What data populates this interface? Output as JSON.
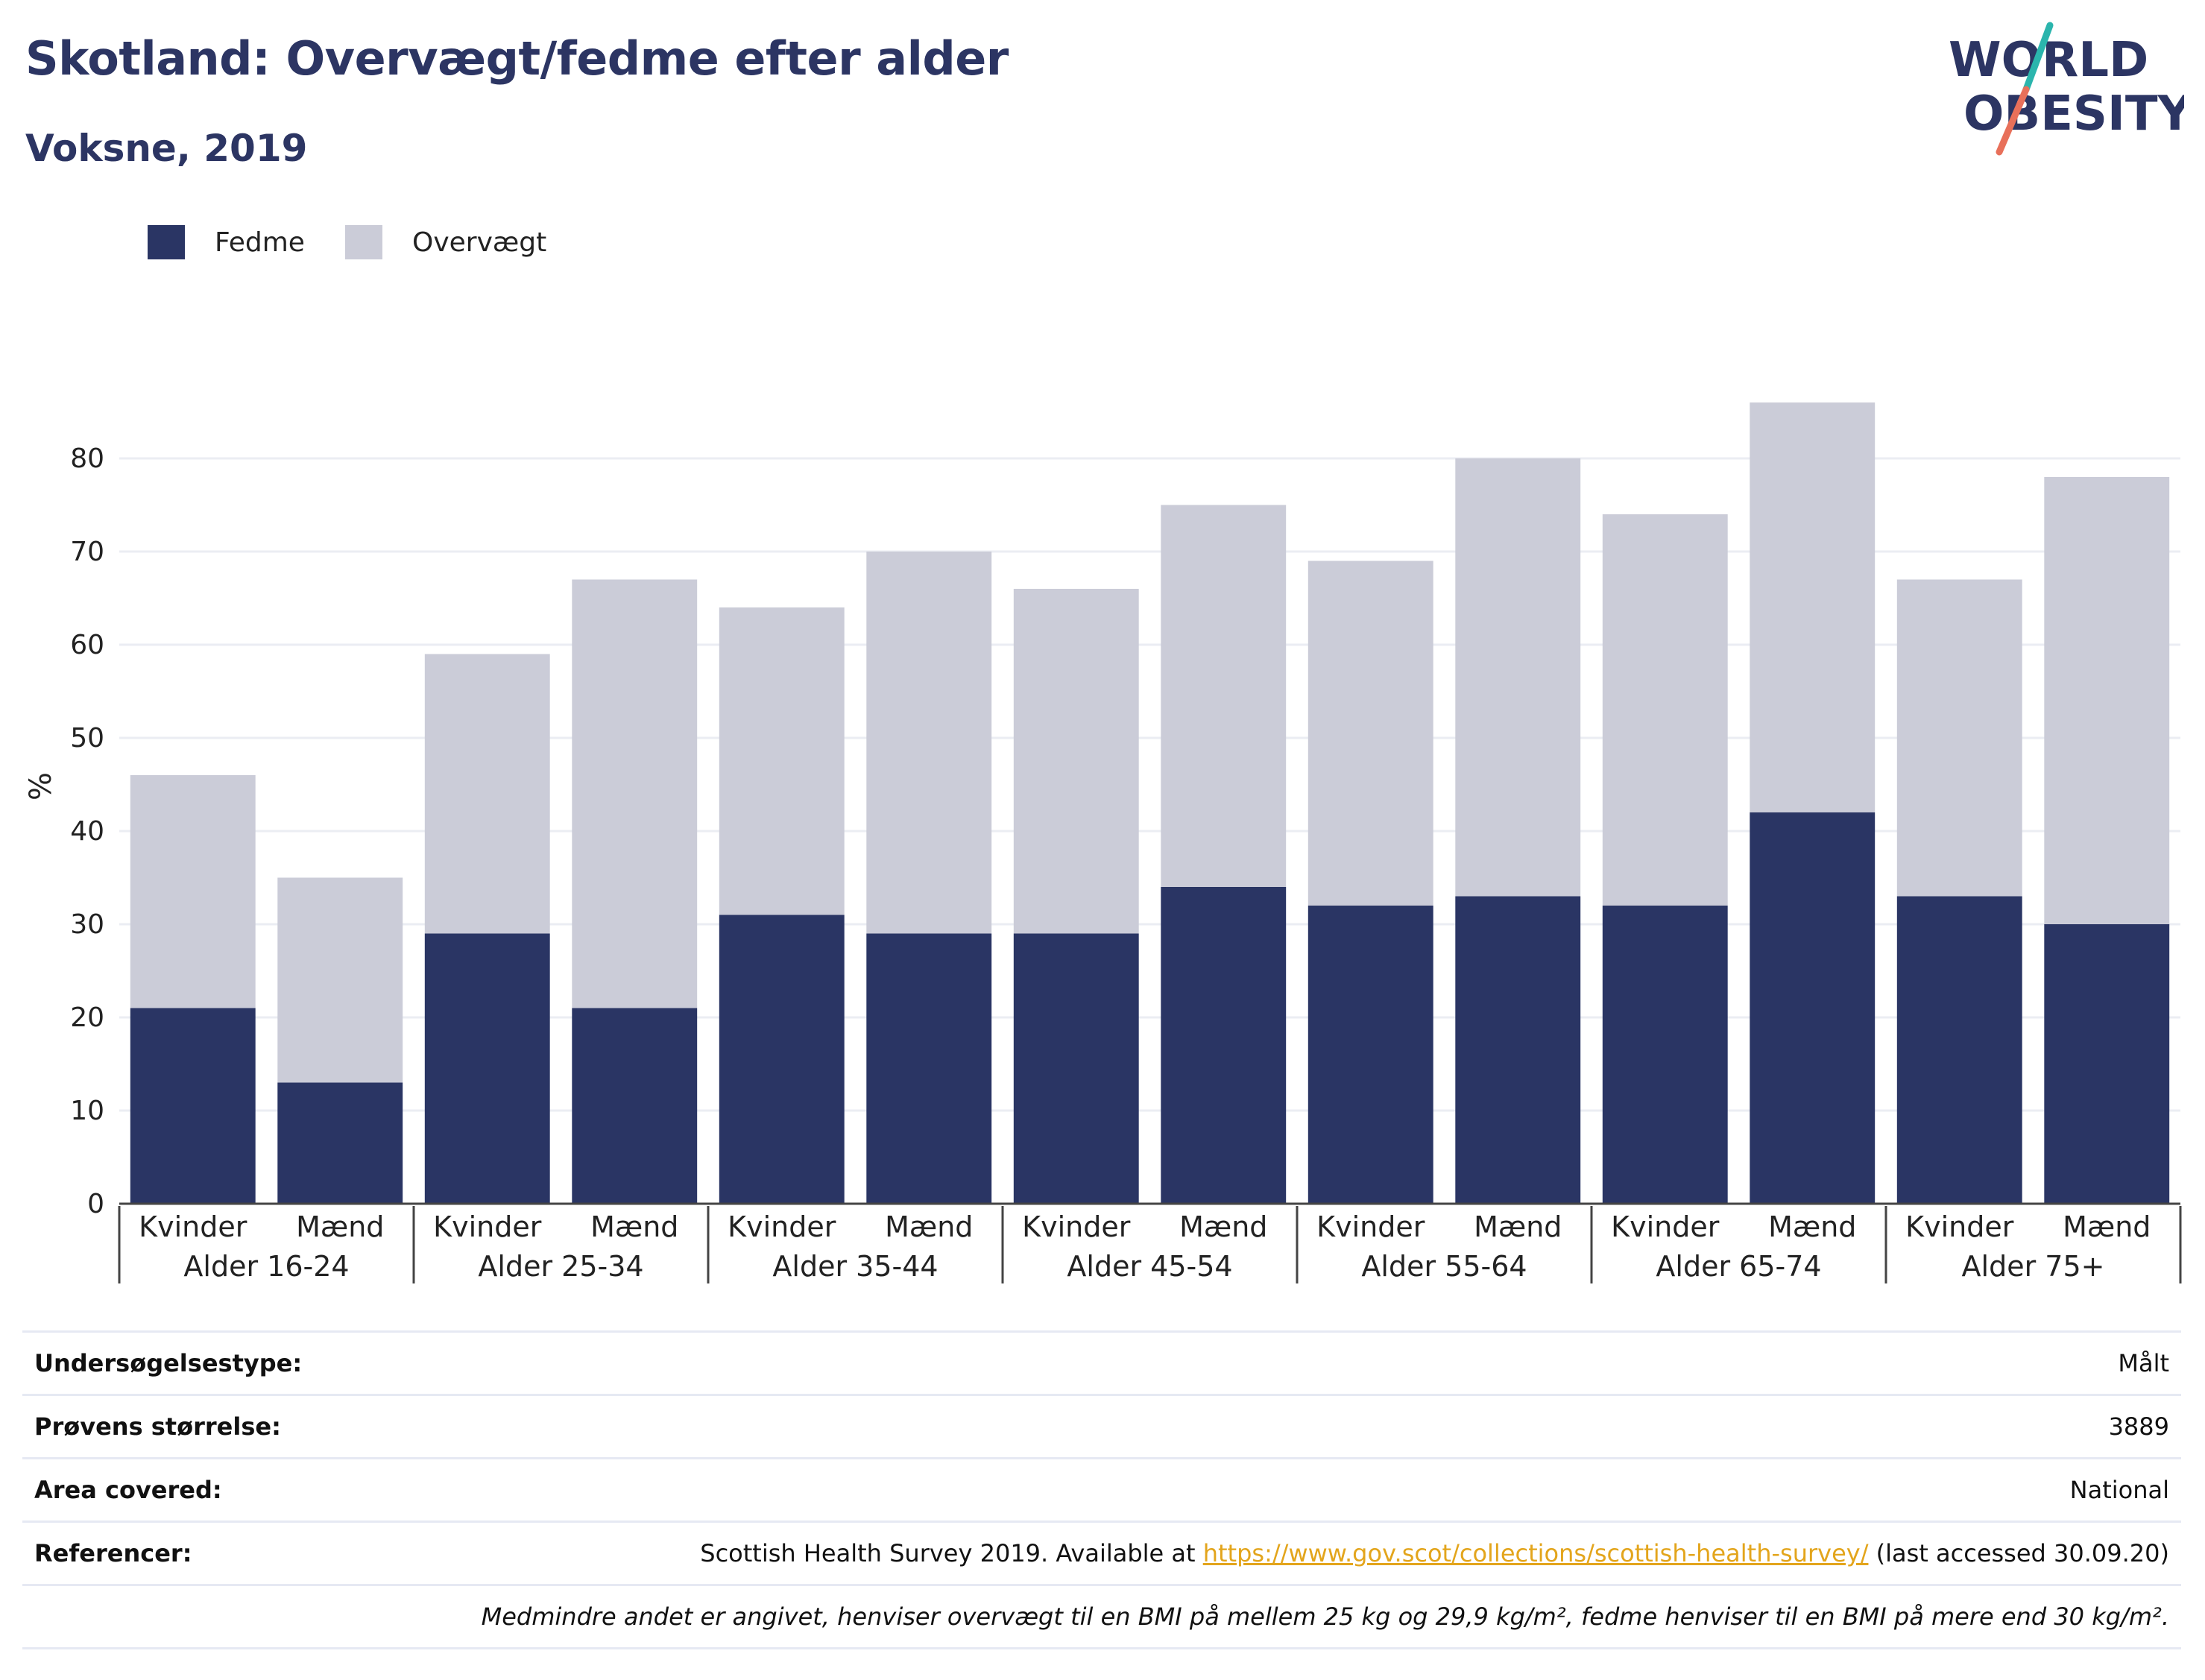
{
  "header": {
    "title": "Skotland: Overvægt/fedme efter alder",
    "subtitle": "Voksne, 2019"
  },
  "logo": {
    "line1": "WORLD",
    "line2": "OBESITY",
    "colors": {
      "text": "#2c3563",
      "slash_top": "#2bb5ad",
      "slash_bottom": "#e8705a"
    }
  },
  "legend": [
    {
      "label": "Fedme",
      "color": "#2a3564"
    },
    {
      "label": "Overvægt",
      "color": "#cbccd8"
    }
  ],
  "chart_data": {
    "type": "bar",
    "stacked": true,
    "title": "",
    "xlabel": "",
    "ylabel": "%",
    "ylim": [
      0,
      85
    ],
    "yticks": [
      0,
      10,
      20,
      30,
      40,
      50,
      60,
      70,
      80
    ],
    "grid": true,
    "legend_position": "top-left",
    "groups": [
      "Alder 16-24",
      "Alder 25-34",
      "Alder 35-44",
      "Alder 45-54",
      "Alder 55-64",
      "Alder 65-74",
      "Alder 75+"
    ],
    "categories": [
      "Kvinder",
      "Mænd",
      "Kvinder",
      "Mænd",
      "Kvinder",
      "Mænd",
      "Kvinder",
      "Mænd",
      "Kvinder",
      "Mænd",
      "Kvinder",
      "Mænd",
      "Kvinder",
      "Mænd"
    ],
    "series": [
      {
        "name": "Fedme",
        "color": "#2a3564",
        "values": [
          21,
          13,
          29,
          21,
          31,
          29,
          29,
          34,
          32,
          33,
          32,
          42,
          33,
          30
        ]
      },
      {
        "name": "Overvægt",
        "color": "#cbccd8",
        "values": [
          25,
          22,
          30,
          46,
          33,
          41,
          37,
          41,
          37,
          47,
          42,
          44,
          34,
          48
        ]
      }
    ]
  },
  "info": {
    "survey_type_label": "Undersøgelsestype:",
    "survey_type_value": "Målt",
    "sample_size_label": "Prøvens størrelse:",
    "sample_size_value": "3889",
    "area_label": "Area covered:",
    "area_value": "National",
    "references_label": "Referencer:",
    "references_prefix": "Scottish Health Survey 2019. Available at ",
    "references_link": "https://www.gov.scot/collections/scottish-health-survey/",
    "references_suffix": " (last accessed 30.09.20)",
    "note": "Medmindre andet er angivet, henviser overvægt til en BMI på mellem 25 kg og 29,9 kg/m², fedme henviser til en BMI på mere end 30 kg/m²."
  }
}
